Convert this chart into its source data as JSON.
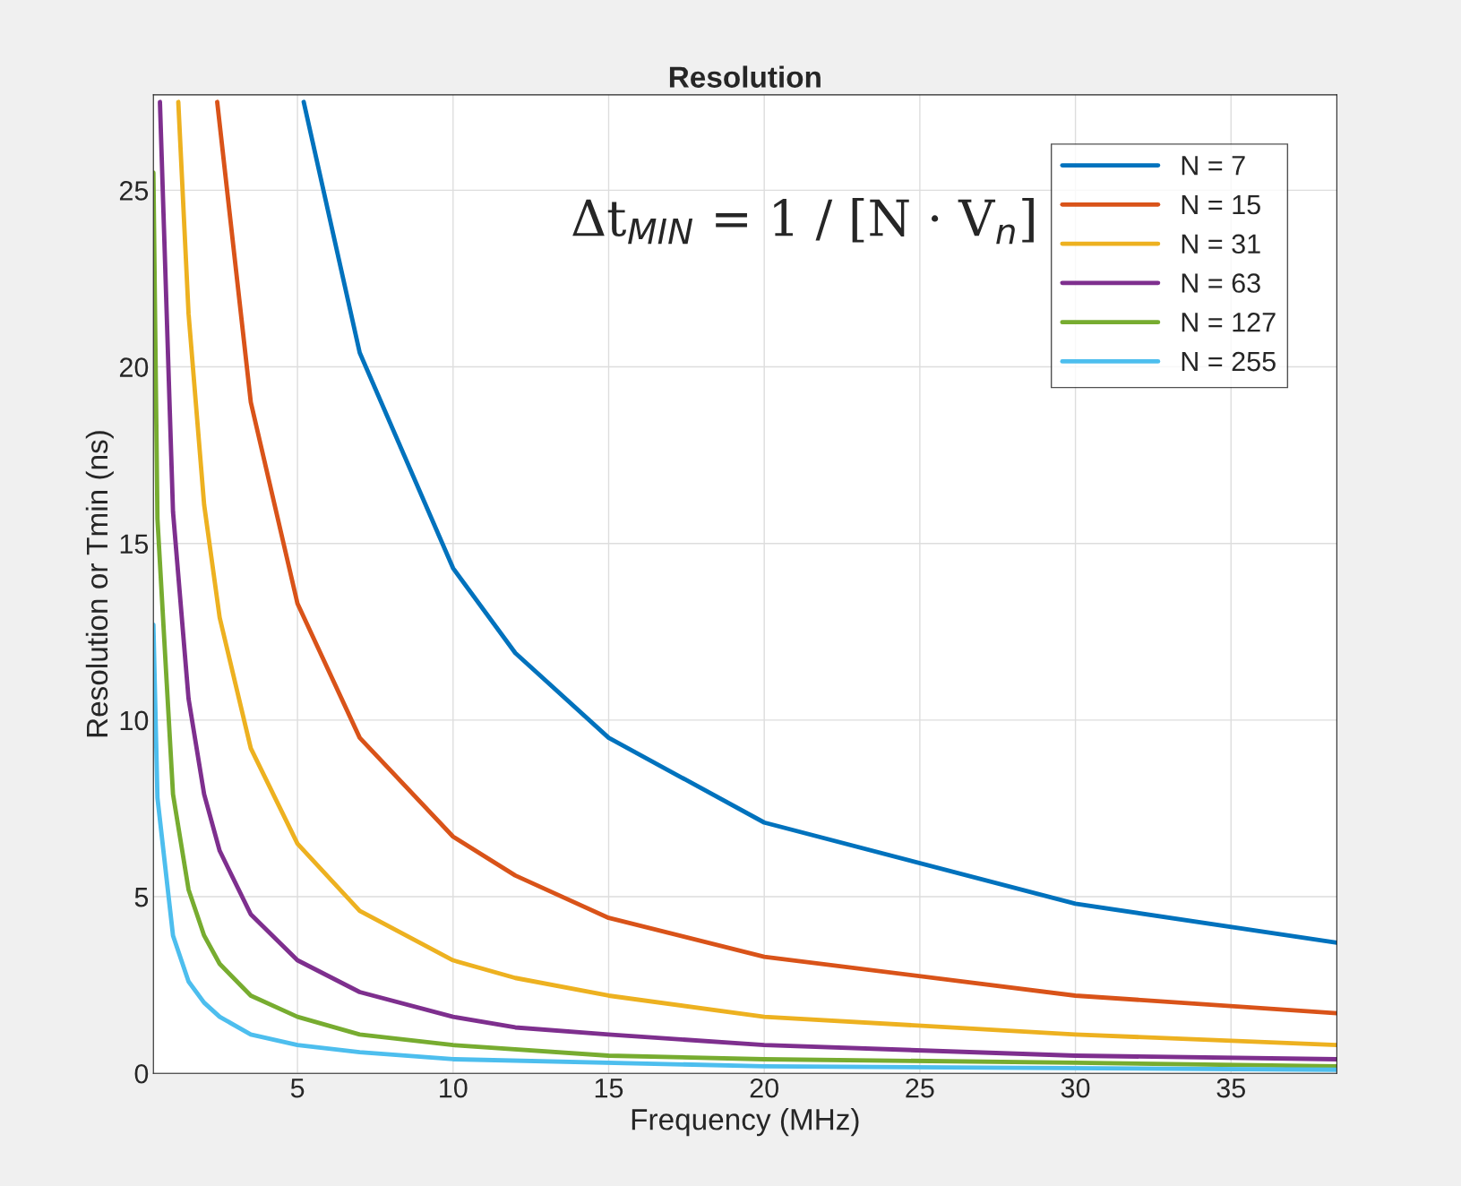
{
  "chart_data": {
    "type": "line",
    "title": "Resolution",
    "xlabel": "Frequency (MHz)",
    "ylabel": "Resolution or Tmin (ns)",
    "xlim": [
      0.37,
      38.4
    ],
    "ylim": [
      0,
      27.7
    ],
    "xticks": [
      5,
      10,
      15,
      20,
      25,
      30,
      35
    ],
    "yticks": [
      0,
      5,
      10,
      15,
      20,
      25
    ],
    "grid": true,
    "legend": "top right",
    "marker": "none",
    "line_style": "solid",
    "annotations": [
      "Δt$_{MIN}$ = 1 / [N · V$_{n}$]"
    ],
    "series": [
      {
        "name": "N = 7",
        "color": "#0072bd",
        "x": [
          5.2,
          7,
          10,
          12,
          15,
          20,
          30,
          38.4
        ],
        "values": [
          27.5,
          20.4,
          14.3,
          11.9,
          9.5,
          7.1,
          4.8,
          3.7
        ]
      },
      {
        "name": "N = 15",
        "color": "#d95319",
        "x": [
          2.42,
          3.5,
          5,
          7,
          10,
          12,
          15,
          20,
          30,
          38.4
        ],
        "values": [
          27.5,
          19.0,
          13.3,
          9.5,
          6.7,
          5.6,
          4.4,
          3.3,
          2.2,
          1.7
        ]
      },
      {
        "name": "N = 31",
        "color": "#edb120",
        "x": [
          1.17,
          1.5,
          2,
          2.5,
          3.5,
          5,
          7,
          10,
          12,
          15,
          20,
          30,
          38.4
        ],
        "values": [
          27.5,
          21.5,
          16.1,
          12.9,
          9.2,
          6.5,
          4.6,
          3.2,
          2.7,
          2.2,
          1.6,
          1.1,
          0.8
        ]
      },
      {
        "name": "N = 63",
        "color": "#7e2f8e",
        "x": [
          0.58,
          1,
          1.5,
          2,
          2.5,
          3.5,
          5,
          7,
          10,
          12,
          15,
          20,
          30,
          38.4
        ],
        "values": [
          27.5,
          15.9,
          10.6,
          7.9,
          6.3,
          4.5,
          3.2,
          2.3,
          1.6,
          1.3,
          1.1,
          0.8,
          0.5,
          0.4
        ]
      },
      {
        "name": "N = 127",
        "color": "#77ac30",
        "x": [
          0.37,
          0.5,
          1,
          1.5,
          2,
          2.5,
          3.5,
          5,
          7,
          10,
          15,
          20,
          30,
          38.4
        ],
        "values": [
          25.5,
          15.7,
          7.9,
          5.2,
          3.9,
          3.1,
          2.2,
          1.6,
          1.1,
          0.8,
          0.5,
          0.4,
          0.3,
          0.2
        ]
      },
      {
        "name": "N = 255",
        "color": "#4dbeee",
        "x": [
          0.37,
          0.5,
          1,
          1.5,
          2,
          2.5,
          3.5,
          5,
          7,
          10,
          20,
          38.4
        ],
        "values": [
          12.7,
          7.8,
          3.9,
          2.6,
          2.0,
          1.6,
          1.1,
          0.8,
          0.6,
          0.4,
          0.2,
          0.1
        ]
      }
    ]
  }
}
